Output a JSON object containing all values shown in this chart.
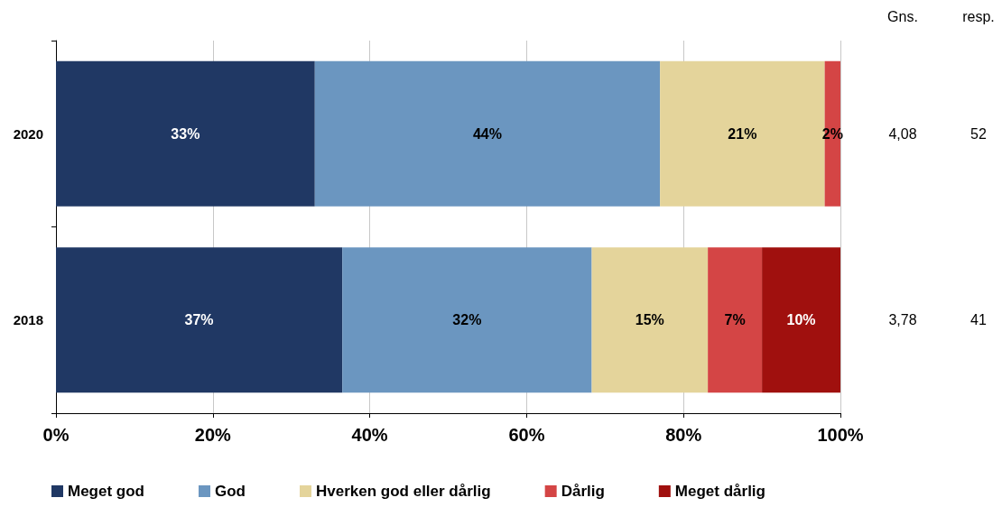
{
  "chart_data": {
    "type": "bar",
    "orientation": "horizontal",
    "stacked": true,
    "categories": [
      "2020",
      "2018"
    ],
    "series": [
      {
        "name": "Meget god",
        "color": "#203864",
        "values": [
          33,
          36.5
        ],
        "value_labels": [
          "33%",
          "37%"
        ]
      },
      {
        "name": "God",
        "color": "#6b96c0",
        "values": [
          44,
          31.8
        ],
        "value_labels": [
          "44%",
          "32%"
        ]
      },
      {
        "name": "Hverken god eller dårlig",
        "color": "#e4d49b",
        "values": [
          21,
          14.8
        ],
        "value_labels": [
          "21%",
          "15%"
        ]
      },
      {
        "name": "Dårlig",
        "color": "#d44545",
        "values": [
          2,
          6.9
        ],
        "value_labels": [
          "2%",
          "7%"
        ]
      },
      {
        "name": "Meget dårlig",
        "color": "#a0100e",
        "values": [
          0,
          10
        ],
        "value_labels": [
          null,
          "10%"
        ]
      }
    ],
    "xlim": [
      0,
      100
    ],
    "xticks": [
      {
        "value": 0,
        "label": "0%"
      },
      {
        "value": 20,
        "label": "20%"
      },
      {
        "value": 40,
        "label": "40%"
      },
      {
        "value": 60,
        "label": "60%"
      },
      {
        "value": 80,
        "label": "80%"
      },
      {
        "value": 100,
        "label": "100%"
      }
    ],
    "grid": "x",
    "legend": "bottom",
    "annotations": [
      "Gns.",
      "resp.",
      "4,08",
      "52",
      "3,78",
      "41"
    ]
  }
}
